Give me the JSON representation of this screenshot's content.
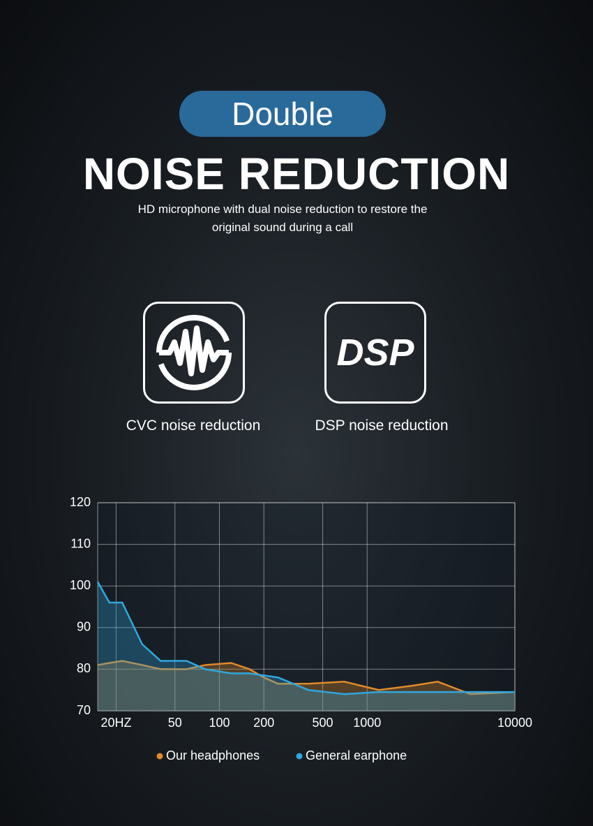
{
  "badge": "Double",
  "title": "NOISE REDUCTION",
  "subtitle_lines": [
    "HD microphone with dual noise reduction to restore the",
    "original sound during a call"
  ],
  "features": [
    {
      "label": "CVC noise reduction"
    },
    {
      "icon_text": "DSP",
      "label": "DSP noise reduction"
    }
  ],
  "chart_data": {
    "type": "area",
    "x": [
      15,
      18,
      22,
      30,
      40,
      60,
      80,
      120,
      160,
      200,
      250,
      400,
      700,
      1200,
      2000,
      3000,
      5000,
      10000
    ],
    "series": [
      {
        "name": "Our headphones",
        "color": "#e08a2a",
        "values": [
          81,
          81.5,
          82,
          81,
          80,
          80,
          81,
          81.5,
          80,
          78,
          76.5,
          76.5,
          77,
          75,
          76,
          77,
          74,
          74.5
        ]
      },
      {
        "name": "General earphone",
        "color": "#2fa8e0",
        "values": [
          101,
          96,
          96,
          86,
          82,
          82,
          80,
          79,
          79,
          78.5,
          78,
          75,
          74,
          74.5,
          74.5,
          74.5,
          74.5,
          74.5
        ]
      }
    ],
    "xlog": true,
    "xlim": [
      15,
      10000
    ],
    "xticks": [
      {
        "value": 20,
        "label": "20HZ"
      },
      50,
      100,
      200,
      500,
      1000,
      10000
    ],
    "ylim": [
      70,
      120
    ],
    "yticks": [
      70,
      80,
      90,
      100,
      110,
      120
    ],
    "grid": true
  }
}
